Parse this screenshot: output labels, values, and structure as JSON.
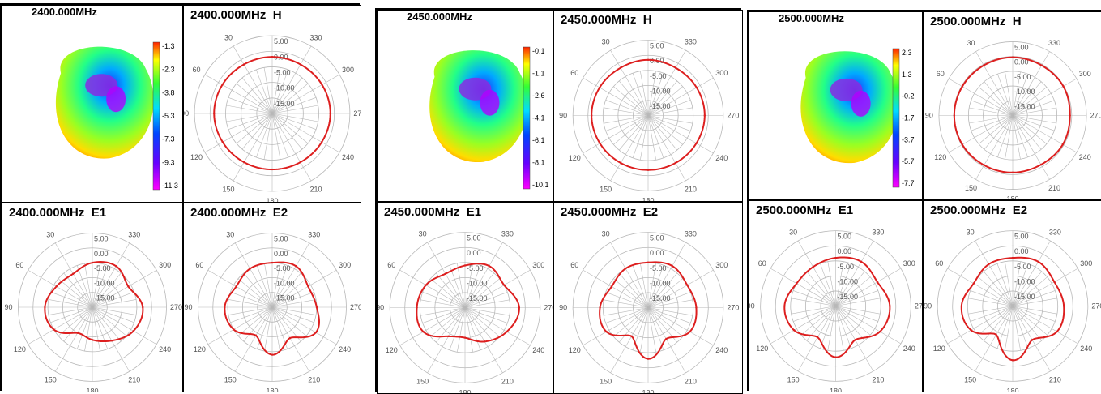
{
  "chart_data": [
    {
      "type": "figure-group",
      "frequency_label": "2400.000MHz",
      "colorbar_ticks": [
        "-1.3",
        "-2.3",
        "-3.8",
        "-5.3",
        "-7.3",
        "-9.3",
        "-11.3"
      ],
      "polar_ring_labels": [
        "5.00",
        "0.00",
        "-5.00",
        "-10.00",
        "-15.00"
      ],
      "polar_angle_labels": [
        "330",
        "300",
        "270",
        "240",
        "210",
        "180",
        "150",
        "120",
        "90",
        "60",
        "30"
      ],
      "plots": [
        {
          "type": "polar",
          "title": "2400.000MHz  H",
          "r_min": -20,
          "r_max": 5,
          "theta": [
            0,
            30,
            60,
            90,
            120,
            150,
            180,
            210,
            240,
            270,
            300,
            330
          ],
          "r": [
            -1.8,
            -1.8,
            -1.5,
            -1.3,
            -1.6,
            -1.9,
            -2.0,
            -1.9,
            -1.6,
            -1.3,
            -1.5,
            -1.8
          ]
        },
        {
          "type": "polar",
          "title": "2400.000MHz  E1",
          "r_min": -20,
          "r_max": 5,
          "theta": [
            0,
            30,
            60,
            90,
            120,
            150,
            180,
            210,
            240,
            270,
            300,
            330
          ],
          "r": [
            -5,
            -4,
            -6,
            -3,
            -4,
            -7,
            -9,
            -10,
            -5,
            -4,
            -6,
            -7
          ]
        },
        {
          "type": "polar",
          "title": "2400.000MHz  E2",
          "r_min": -20,
          "r_max": 5,
          "theta": [
            0,
            30,
            60,
            90,
            120,
            150,
            180,
            210,
            240,
            270,
            300,
            330
          ],
          "r": [
            -5,
            -4,
            -6,
            -5,
            -3,
            -8,
            -4,
            -9,
            -5,
            -4,
            -6,
            -5
          ]
        }
      ]
    },
    {
      "type": "figure-group",
      "frequency_label": "2450.000MHz",
      "colorbar_ticks": [
        "-0.1",
        "-1.1",
        "-2.6",
        "-4.1",
        "-6.1",
        "-8.1",
        "-10.1"
      ],
      "polar_ring_labels": [
        "5.00",
        "0.00",
        "-5.00",
        "-10.00",
        "-15.00"
      ],
      "polar_angle_labels": [
        "330",
        "300",
        "270",
        "240",
        "210",
        "180",
        "150",
        "120",
        "90",
        "60",
        "30"
      ],
      "plots": [
        {
          "type": "polar",
          "title": "2450.000MHz  H",
          "r_min": -20,
          "r_max": 5,
          "theta": [
            0,
            30,
            60,
            90,
            120,
            150,
            180,
            210,
            240,
            270,
            300,
            330
          ],
          "r": [
            -1.5,
            -1.7,
            -1.4,
            -1.2,
            -1.5,
            -1.8,
            -1.9,
            -1.8,
            -1.5,
            -1.2,
            -1.4,
            -1.7
          ]
        },
        {
          "type": "polar",
          "title": "2450.000MHz  E1",
          "r_min": -20,
          "r_max": 5,
          "theta": [
            0,
            30,
            60,
            90,
            120,
            150,
            180,
            210,
            240,
            270,
            300,
            330
          ],
          "r": [
            -6,
            -4,
            -5,
            -2,
            -4,
            -7,
            -10,
            -9,
            -4,
            -4,
            -5,
            -7
          ]
        },
        {
          "type": "polar",
          "title": "2450.000MHz  E2",
          "r_min": -20,
          "r_max": 5,
          "theta": [
            0,
            30,
            60,
            90,
            120,
            150,
            180,
            210,
            240,
            270,
            300,
            330
          ],
          "r": [
            -5,
            -4,
            -5,
            -4,
            -4,
            -8,
            -3,
            -9,
            -4,
            -4,
            -6,
            -5
          ]
        }
      ]
    },
    {
      "type": "figure-group",
      "frequency_label": "2500.000MHz",
      "colorbar_ticks": [
        "2.3",
        "1.3",
        "-0.2",
        "-1.7",
        "-3.7",
        "-5.7",
        "-7.7"
      ],
      "polar_ring_labels": [
        "5.00",
        "0.00",
        "-5.00",
        "-10.00",
        "-15.00"
      ],
      "polar_angle_labels": [
        "330",
        "300",
        "270",
        "240",
        "210",
        "180",
        "150",
        "120",
        "90",
        "60",
        "30"
      ],
      "plots": [
        {
          "type": "polar",
          "title": "2500.000MHz  H",
          "r_min": -20,
          "r_max": 5,
          "theta": [
            0,
            30,
            60,
            90,
            120,
            150,
            180,
            210,
            240,
            270,
            300,
            330
          ],
          "r": [
            -0.3,
            -0.4,
            -0.2,
            -0.6,
            -0.4,
            -0.8,
            -0.7,
            -0.6,
            -0.3,
            -0.2,
            -0.3,
            -0.4
          ]
        },
        {
          "type": "polar",
          "title": "2500.000MHz  E1",
          "r_min": -20,
          "r_max": 5,
          "theta": [
            0,
            30,
            60,
            90,
            120,
            150,
            180,
            210,
            240,
            270,
            300,
            330
          ],
          "r": [
            -4,
            -3,
            -4,
            -2,
            -3,
            -7,
            -3,
            -8,
            -4,
            -3,
            -5,
            -5
          ]
        },
        {
          "type": "polar",
          "title": "2500.000MHz  E2",
          "r_min": -20,
          "r_max": 5,
          "theta": [
            0,
            30,
            60,
            90,
            120,
            150,
            180,
            210,
            240,
            270,
            300,
            330
          ],
          "r": [
            -4,
            -3,
            -4,
            -3,
            -3,
            -7,
            -2,
            -9,
            -4,
            -3,
            -5,
            -4
          ]
        }
      ]
    }
  ],
  "colors": {
    "curve": "#dd1f1f",
    "grid": "#b8b8b8",
    "axis": "#000000"
  }
}
